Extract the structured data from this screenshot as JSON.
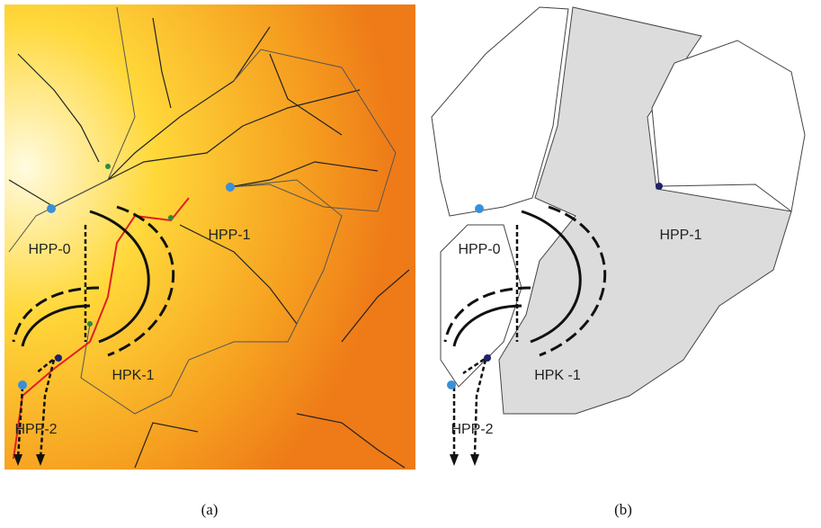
{
  "panels": [
    {
      "caption": "(a)",
      "labels": [
        "HPP-0",
        "HPP-1",
        "HPK-1",
        "HPP-2"
      ]
    },
    {
      "caption": "(b)",
      "labels": [
        "HPP-0",
        "HPP-1",
        "HPK -1",
        "HPP-2"
      ]
    }
  ]
}
